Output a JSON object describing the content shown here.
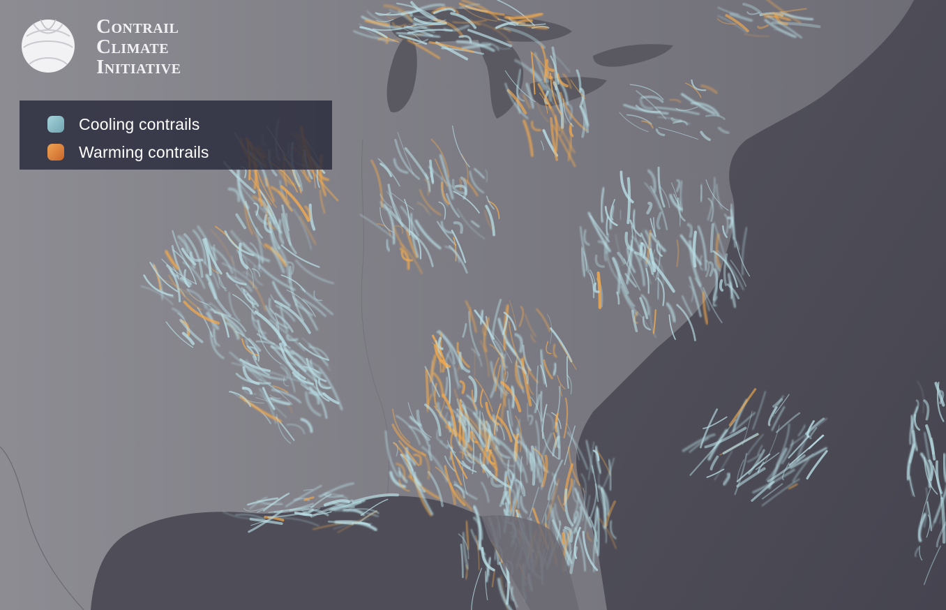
{
  "brand": {
    "logo_icon": "globe-icon",
    "lines": [
      "Contrail",
      "Climate",
      "Initiative"
    ]
  },
  "legend": {
    "items": [
      {
        "label": "Cooling contrails",
        "color_light": "#a6d4dc",
        "color_dark": "#6fa4b0"
      },
      {
        "label": "Warming contrails",
        "color_light": "#f0a552",
        "color_dark": "#c9652c"
      }
    ]
  },
  "map": {
    "land_color": "#838289",
    "water_color": "#4b4a55",
    "cooling_color": "#b8dde4",
    "warming_color": "#f1a94e"
  }
}
